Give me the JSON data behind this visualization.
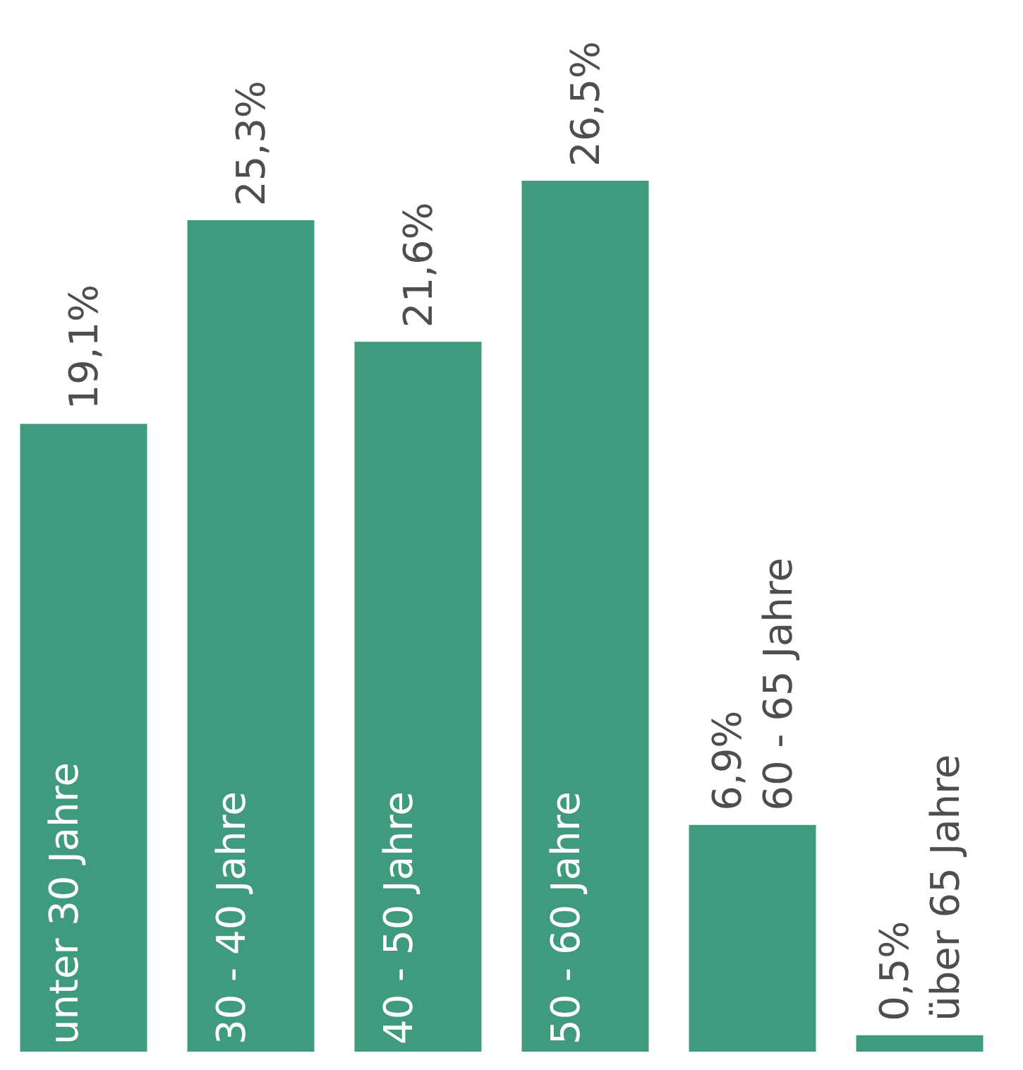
{
  "chart_data": {
    "type": "bar",
    "categories": [
      "unter 30 Jahre",
      "30 - 40 Jahre",
      "40 - 50 Jahre",
      "50 - 60 Jahre",
      "60 - 65 Jahre",
      "über 65 Jahre"
    ],
    "values": [
      19.1,
      25.3,
      21.6,
      26.5,
      6.9,
      0.5
    ],
    "value_labels": [
      "19,1%",
      "25,3%",
      "21,6%",
      "26,5%",
      "6,9%",
      "0,5%"
    ],
    "color": "#3f9a7e"
  }
}
